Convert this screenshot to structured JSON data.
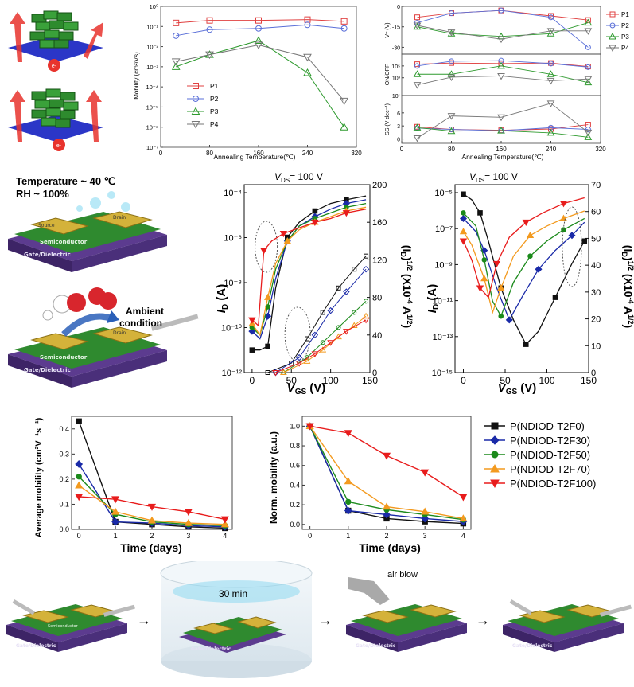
{
  "panel_a": {
    "electron_label": "e-"
  },
  "chart_b": {
    "type": "scatter",
    "ylabel": "Mobility (cm²/Vs)",
    "xlabel": "Annealing Temperature(℃)",
    "xlim": [
      0,
      320
    ],
    "xticks": [
      0,
      80,
      160,
      240,
      320
    ],
    "yscale": "log",
    "ylim": [
      1e-07,
      1
    ],
    "yticks": [
      "10⁰",
      "10⁻¹",
      "10⁻²",
      "10⁻³",
      "10⁻⁴",
      "10⁻⁵",
      "10⁻⁶",
      "10⁻⁷"
    ],
    "x": [
      25,
      80,
      160,
      240,
      300
    ],
    "series": [
      {
        "name": "P1",
        "color": "#e04040",
        "marker": "square",
        "values": [
          0.15,
          0.2,
          0.2,
          0.22,
          0.18
        ]
      },
      {
        "name": "P2",
        "color": "#5a6fd8",
        "marker": "circle",
        "values": [
          0.035,
          0.07,
          0.08,
          0.12,
          0.08
        ]
      },
      {
        "name": "P3",
        "color": "#2e9a2e",
        "marker": "triangle",
        "values": [
          0.001,
          0.004,
          0.02,
          0.0005,
          1e-06
        ]
      },
      {
        "name": "P4",
        "color": "#777777",
        "marker": "triangle-down",
        "values": [
          0.0018,
          0.004,
          0.012,
          0.003,
          2e-05
        ]
      }
    ]
  },
  "chart_c": {
    "type": "scatter",
    "xlabel": "Annealing Temperature(℃)",
    "xlim": [
      0,
      320
    ],
    "xticks": [
      0,
      80,
      160,
      240,
      320
    ],
    "x": [
      25,
      80,
      160,
      240,
      300
    ],
    "legend": [
      {
        "name": "P1",
        "color": "#e04040",
        "marker": "square"
      },
      {
        "name": "P2",
        "color": "#5a6fd8",
        "marker": "circle"
      },
      {
        "name": "P3",
        "color": "#2e9a2e",
        "marker": "triangle"
      },
      {
        "name": "P4",
        "color": "#777777",
        "marker": "triangle-down"
      }
    ],
    "subplots": [
      {
        "ylabel": "Vᴛ (V)",
        "ylim": [
          -35,
          0
        ],
        "yticks": [
          "0",
          "-15",
          "-30"
        ],
        "tickvals": [
          0,
          -15,
          -30
        ],
        "series": [
          [
            -8,
            -5,
            -3,
            -7,
            -10
          ],
          [
            -12,
            -5,
            -3,
            -8,
            -30
          ],
          [
            -15,
            -20,
            -22,
            -20,
            -12
          ],
          [
            -14,
            -19,
            -24,
            -18,
            -18
          ]
        ]
      },
      {
        "ylabel": "ON/OFF",
        "ylim": [
          0,
          7
        ],
        "yticks": [
          "10⁵",
          "10³"
        ],
        "tickvals": [
          5,
          3
        ],
        "series": [
          [
            5.3,
            5.5,
            5.4,
            5.5,
            4.9
          ],
          [
            5.0,
            5.8,
            5.9,
            5.4,
            4.8
          ],
          [
            3.6,
            3.6,
            5.0,
            3.6,
            2.2
          ],
          [
            1.8,
            3.1,
            3.3,
            2.5,
            2.8
          ]
        ]
      },
      {
        "ylabel": "SS (V dec⁻¹)",
        "ylim": [
          -1,
          10
        ],
        "yticks": [
          "10¹",
          "6",
          "3",
          "0"
        ],
        "tickvals": [
          10,
          6,
          3,
          0
        ],
        "series": [
          [
            2.8,
            2.2,
            2.0,
            2.3,
            3.3
          ],
          [
            2.5,
            2.2,
            1.9,
            2.6,
            2.2
          ],
          [
            2.6,
            1.8,
            1.9,
            1.4,
            0.4
          ],
          [
            0.2,
            5.3,
            5.0,
            8.2,
            1.5
          ]
        ]
      }
    ]
  },
  "panel_d": {
    "temperature_text": "Temperature ~ 40 ℃",
    "rh_text": "RH ~ 100%",
    "ambient_text1": "Ambient",
    "ambient_text2": "condition",
    "semiconductor": "Semiconductor",
    "source": "Source",
    "drain": "Drain",
    "gate": "Gate/Dielectric"
  },
  "chart_e": {
    "type": "line",
    "title_v": "V",
    "title_sub": "DS",
    "title_rest": "= 100 V",
    "ylabel_left": "I",
    "ylabel_left_sub": "D",
    "ylabel_left_unit": " (A)",
    "ylabel_right": "(I",
    "ylabel_right_sub": "D",
    "ylabel_right_rest": ")",
    "ylabel_right_sup": "1/2",
    "ylabel_right_unit": " (X10",
    "ylabel_right_exp": "-4",
    "ylabel_right_unit2": " A",
    "ylabel_right_sup2": "1/2",
    "ylabel_right_close": ")",
    "xlabel": "V",
    "xlabel_sub": "GS",
    "xlabel_unit": " (V)",
    "xlim": [
      -10,
      150
    ],
    "xticks": [
      "0",
      "50",
      "100",
      "150"
    ],
    "xtickvals": [
      0,
      50,
      100,
      150
    ],
    "yticks_left": [
      "10⁻⁴",
      "10⁻⁶",
      "10⁻⁸",
      "10⁻¹⁰",
      "10⁻¹²"
    ],
    "yticks_right": [
      "200",
      "160",
      "120",
      "80",
      "40",
      "0"
    ]
  },
  "chart_f": {
    "type": "line",
    "title_v": "V",
    "title_sub": "DS",
    "title_rest": "= 100 V",
    "ylabel_left": "I",
    "ylabel_left_sub": "D",
    "ylabel_left_unit": " (A)",
    "ylabel_right": "(I",
    "ylabel_right_sub": "D",
    "ylabel_right_rest": ")",
    "ylabel_right_sup": "1/2",
    "ylabel_right_unit": " (X10",
    "ylabel_right_exp": "-4",
    "ylabel_right_unit2": " A",
    "ylabel_right_sup2": "1/2",
    "ylabel_right_close": ")",
    "xlabel": "V",
    "xlabel_sub": "GS",
    "xlabel_unit": " (V)",
    "xlim": [
      -10,
      150
    ],
    "xticks": [
      "0",
      "50",
      "100",
      "150"
    ],
    "xtickvals": [
      0,
      50,
      100,
      150
    ],
    "yticks_left": [
      "10⁻⁵",
      "10⁻⁷",
      "10⁻⁹",
      "10⁻¹¹",
      "10⁻¹³",
      "10⁻¹⁵"
    ],
    "yticks_right": [
      "70",
      "60",
      "50",
      "40",
      "30",
      "20",
      "10",
      "0"
    ]
  },
  "chart_g": {
    "type": "line",
    "ylabel": "Average mobility (cm²V⁻¹s⁻¹)",
    "xlabel": "Time (days)",
    "xlim": [
      -0.2,
      4.2
    ],
    "ylim": [
      0,
      0.45
    ],
    "xticks": [
      0,
      1,
      2,
      3,
      4
    ],
    "yticks": [
      "0.0",
      "0.1",
      "0.2",
      "0.3",
      "0.4"
    ],
    "ytickvals": [
      0,
      0.1,
      0.2,
      0.3,
      0.4
    ],
    "x": [
      0,
      1,
      2,
      3,
      4
    ],
    "series": [
      {
        "name": "P(NDIOD-T2F0)",
        "color": "#111111",
        "marker": "square",
        "values": [
          0.43,
          0.03,
          0.02,
          0.01,
          0.005
        ]
      },
      {
        "name": "P(NDIOD-T2F30)",
        "color": "#1a2aa8",
        "marker": "diamond",
        "values": [
          0.26,
          0.03,
          0.025,
          0.015,
          0.01
        ]
      },
      {
        "name": "P(NDIOD-T2F50)",
        "color": "#1b8a1b",
        "marker": "circle",
        "values": [
          0.21,
          0.06,
          0.03,
          0.02,
          0.015
        ]
      },
      {
        "name": "P(NDIOD-T2F70)",
        "color": "#f39a1f",
        "marker": "triangle",
        "values": [
          0.175,
          0.07,
          0.035,
          0.025,
          0.02
        ]
      },
      {
        "name": "P(NDIOD-T2F100)",
        "color": "#e81c1c",
        "marker": "triangle-down",
        "values": [
          0.13,
          0.12,
          0.09,
          0.07,
          0.04
        ]
      }
    ]
  },
  "chart_h": {
    "type": "line",
    "ylabel": "Norm. mobility (a.u.)",
    "xlabel": "Time (days)",
    "xlim": [
      -0.2,
      4.2
    ],
    "ylim": [
      -0.05,
      1.1
    ],
    "xticks": [
      0,
      1,
      2,
      3,
      4
    ],
    "yticks": [
      "0.0",
      "0.2",
      "0.4",
      "0.6",
      "0.8",
      "1.0"
    ],
    "ytickvals": [
      0,
      0.2,
      0.4,
      0.6,
      0.8,
      1.0
    ],
    "x": [
      0,
      1,
      2,
      3,
      4
    ],
    "series": [
      {
        "name": "P(NDIOD-T2F0)",
        "color": "#111111",
        "marker": "square",
        "values": [
          1.0,
          0.14,
          0.06,
          0.03,
          0.01
        ]
      },
      {
        "name": "P(NDIOD-T2F30)",
        "color": "#1a2aa8",
        "marker": "diamond",
        "values": [
          1.0,
          0.14,
          0.1,
          0.06,
          0.03
        ]
      },
      {
        "name": "P(NDIOD-T2F50)",
        "color": "#1b8a1b",
        "marker": "circle",
        "values": [
          1.0,
          0.23,
          0.15,
          0.1,
          0.05
        ]
      },
      {
        "name": "P(NDIOD-T2F70)",
        "color": "#f39a1f",
        "marker": "triangle",
        "values": [
          1.0,
          0.44,
          0.18,
          0.13,
          0.06
        ]
      },
      {
        "name": "P(NDIOD-T2F100)",
        "color": "#e81c1c",
        "marker": "triangle-down",
        "values": [
          1.0,
          0.93,
          0.7,
          0.53,
          0.28
        ]
      }
    ]
  },
  "legend_gh": [
    {
      "name": "P(NDIOD-T2F0)",
      "color": "#111111",
      "marker": "square"
    },
    {
      "name": "P(NDIOD-T2F30)",
      "color": "#1a2aa8",
      "marker": "diamond"
    },
    {
      "name": "P(NDIOD-T2F50)",
      "color": "#1b8a1b",
      "marker": "circle"
    },
    {
      "name": "P(NDIOD-T2F70)",
      "color": "#f39a1f",
      "marker": "triangle"
    },
    {
      "name": "P(NDIOD-T2F100)",
      "color": "#e81c1c",
      "marker": "triangle-down"
    }
  ],
  "process": {
    "time_label": "30 min",
    "air_label": "air blow",
    "semiconductor": "Semiconductor",
    "source": "Source",
    "drain": "Drain",
    "gate": "Gate/Dielectric"
  }
}
